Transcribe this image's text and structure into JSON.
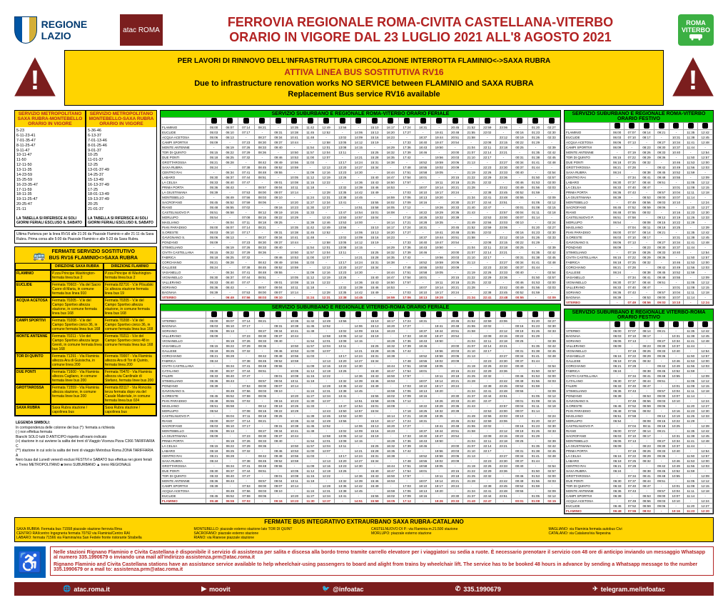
{
  "header": {
    "regione": "REGIONE LAZIO",
    "atac": "atac\nROMA",
    "title1": "FERROVIA REGIONALE ROMA-CIVITA CASTELLANA-VITERBO",
    "title2": "ORARIO IN VIGORE DAL 23 LUGLIO 2021 ALL'8 AGOSTO 2021",
    "badge_l1": "ROMA",
    "badge_l2": "VITERBO"
  },
  "banner": {
    "l1": "PER LAVORI DI RINNOVO DELL'INFRASTRUTTURA CIRCOLAZIONE INTERROTTA FLAMINIO<->SAXA RUBRA",
    "l2": "ATTIVA LINEA BUS SOSTITUTIVA RV16",
    "l3": "Due to infrastructure renovation works NO SERVICE between FLAMINIO and SAXA RUBRA",
    "l4": "Replacement Bus service RV16 available"
  },
  "metro": {
    "left_head": "SERVIZIO METROPOLITANO\nSAXA RUBRA-MONTEBELLO\nORARIO IN VIGORE",
    "right_head": "SERVIZIO METROPOLITANO\nMONTEBELLO-SAXA RUBRA\nORARIO IN VIGORE",
    "left_times": [
      "5-23",
      "6-11-23-41",
      "7-01-35-47",
      "8-11-25-47",
      "9-11-47",
      "10-11-47",
      "11-50",
      "12-11-50",
      "13-11-35",
      "14-23-59",
      "15-25-59",
      "16-23-35-47",
      "17-11-59",
      "18-11-35",
      "19-11-25-47",
      "20-25-47",
      "21-11"
    ],
    "right_times": [
      "5-36-46",
      "6-13-37",
      "7-01-13-46",
      "8-01-25-46",
      "9-01-37",
      "10-25",
      "11-01-37",
      "12-25",
      "13-01-37-49",
      "14-25-37",
      "15-13-49",
      "16-13-37-49",
      "17-25",
      "18-01-13-49",
      "19-13-37-49",
      "20-25",
      "21-01-37"
    ],
    "left_note": "LA TABELLA SI RIFERISCE AI SOLI GIORNI FERIALI ESCLUSO IL SABATO",
    "right_note": "LA TABELLA SI RIFERISCE AI SOLI GIORNI FERIALI ESCLUSO IL SABATO",
    "foot": "Ultima Partenza per la linea RV16 alle 21:26 da Piazzale Flaminio e alle 21:11 da Saxa Rubra. Prima corsa alle 5:00 da Piazzale Flaminio e alle 5:23 da Saxa Rubra."
  },
  "fermate": {
    "title1": "FERMATE SERVIZIO SOSTITUTIVO",
    "title2": "BUS RV16 FLAMINIO<>SAXA RUBRA",
    "head_dir1": "DIREZIONE SAXA RUBRA",
    "head_dir2": "DIREZIONE FLAMINIO",
    "rows": [
      [
        "FLAMINIO",
        "P.zza Principe Washington-fermata linea bus 2",
        "P.zza Principe di Washington-fermata linea bus 2"
      ],
      [
        "EUCLIDE",
        "Fermata 70603 - Via del Sacro Cuore di Maria, in comune fermata bus linea 910",
        "Fermata 82716 - V.le Pilsudski 1c altezza stazione fermata linea bus 19"
      ],
      [
        "ACQUA ACETOSA",
        "Fermata 70205 - V.le del Campo Sportivo altezza stazione, in comune fermata linea bus 168",
        "Fermata 70205 - V.le del Campo Sportivo altezza stazione, in comune fermata linea bus 168"
      ],
      [
        "CAMPI SPORTIVI",
        "Fermata 70208 - V.le del Campo Sportivo civico 36, in comune fermata linea bus 168",
        "Fermata 70208 - V.le del Campo Sportivo civico 36, in comune fermata linea bus 168"
      ],
      [
        "MONTE ANTENNE",
        "Fermata 70211 - V.le del Campo Sportivo altezza largo Grenti, in comune fermata linea bus 168",
        "Fermata 70211 - V.le del Campo Sportivo civico 48 in comune fermata linea bus 168"
      ],
      [
        "TOR DI QUINTO",
        "Fermata 71291 - Via Flaminia altezza Ara di Guisischa, in comune linea 200",
        "Fermata 70007 - Via Flaminia altezza Ara di Tor di Quinto, fermata linea 200"
      ],
      [
        "DUE PONTI",
        "Fermata 71600 - Via Flaminia altezza Cagliano, in comune fermata linee bus 200",
        "Fermata 70470 - Via Flaminia altezza via Cardinale di Stefano, fermata linee bus 200"
      ],
      [
        "GROTTAROSSA",
        "Fermata 71559 - Via Flaminia altezza stazione, in comune fermata linee bus 200",
        "Fermata 83117 - Via Roncola terza fermata dopo via del Casale Materiale, in comune fermata linea bus 024"
      ],
      [
        "SAXA RUBRA",
        "Saxa Rubra stazione / capolinea bus",
        "Saxa Rubra stazione / capolinea bus"
      ]
    ],
    "legend": [
      "LEGENDA SIMBOLI:",
      "In corrispondenza delle colonne dei bus (*): fermata a richiesta",
      "(-) non effettua fermata",
      "Bianchi SOLO tutti D ANTICIPO rispetto all'orario indicato",
      "(+) stazione in cui avviene la salita dei treni di Viaggio Vicenza Pizza C366 TARIFFARIA C",
      "(**) stazione in cui solo la salita dei treni di viaggio Metrobus Roma ZONA TARIFFARIA A",
      "Nero busa dal Lunedì venerdì esclusi FESTIVI e SABATO bus effettua nei giorni feriali",
      "● Treno METROPOLITANO ■ treno SUBURBANO ▲ treno REGIONALE"
    ]
  },
  "big_tables": {
    "rv_feriale_head": "SERVIZIO SUBURBANO E REGIONALE ROMA-VITERBO\nORARIO FERIALE",
    "vr_feriale_head": "SERVIZIO SUBURBANO E REGIONALE VITERBO-ROMA\nORARIO FERIALE",
    "rv_festivo_head": "SERVIZIO SUBURBANO E REGIONALE ROMA-VITERBO\nORARIO FESTIVO",
    "vr_festivo_head": "SERVIZIO SUBURBANO E REGIONALE VITERBO-ROMA\nORARIO FESTIVO",
    "stations_rv": [
      "FLAMINIO",
      "EUCLIDE",
      "ACQUA ACETOSA",
      "CAMPI SPORTIVI",
      "MONTE ANTENNE",
      "TOR DI QUINTO",
      "DUE PONTI",
      "GROTTAROSSA",
      "SAXA RUBRA",
      "CENTRO RAI",
      "LABARO",
      "LA CELSA",
      "PRIMA PORTA",
      "LA GIUSTINIANA",
      "MONTEBELLO",
      "SACROFANO",
      "RIANO",
      "CASTELNUOVO P.",
      "MORLUPO",
      "MAGLIANO",
      "PIAN PARADISO",
      "S.ORESTE",
      "GAVIGNANO S.",
      "PONZANO",
      "STIMIGLIANO",
      "CIVITA CASTELLANA",
      "FABRICA",
      "CORCHIANO",
      "GALLESE",
      "VASANELLO",
      "VIGNANELLO",
      "VALLERANO",
      "SORIANO",
      "BAGNAIA",
      "VITERBO"
    ],
    "stations_vr": [
      "VITERBO",
      "BAGNAIA",
      "SORIANO",
      "VALLERANO",
      "VIGNANELLO",
      "VASANELLO",
      "GALLESE",
      "CORCHIANO",
      "FABRICA",
      "CIVITA CASTELLANA",
      "CATALANO",
      "FALERI",
      "STIMIGLIANO",
      "PONZANO",
      "GAVIGNANO S.",
      "S.ORESTE",
      "PIAN PARADISO",
      "MAGLIANO",
      "MORLUPO",
      "CASTELNUOVO P.",
      "RIANO",
      "SACROFANO",
      "MONTEBELLO",
      "LA GIUSTINIANA",
      "PRIMA PORTA",
      "LA CELSA",
      "LABARO",
      "CENTRO RAI",
      "SAXA RUBRA",
      "GROTTAROSSA",
      "DUE PONTI",
      "TOR DI QUINTO",
      "MONTE ANTENNE",
      "CAMPI SPORTIVI",
      "ACQUA ACETOSA",
      "EUCLIDE",
      "FLAMINIO"
    ],
    "cols_feriale": 22,
    "cols_festivo": 7
  },
  "extra": {
    "head": "FERMATE BUS INTEGRATIVO EXTRAURBANO SAXA RUBRA-CATALANO",
    "col1": [
      "SAXA RUBRA: Fermata bus 71558 piazzale stazione ferrovia Rma",
      "CENTRO RAI/centro Ingegneria fermata 70792 via Flaminia/Centro RAI",
      "LABARO: fermata 71566 via Flaminia/via San Fedele fronte ristorante Strabella"
    ],
    "col2": [
      "MONTEBELLO: piazzale esterno stazione lato TOR DI QUINT",
      "SACROFANO: piazzale esterno stazione",
      "RIANO: via Rianese piazzale stazione"
    ],
    "col3": [
      "CASTELNUOVO DI P.: via Flaminia m.21.500 stazione",
      "MORLUPO: piazzale esterno stazione"
    ],
    "col4": [
      "MAGLIANO: via Flaminia fermata autobus Civi",
      "CATALANO: via Catalano/via Nepesina"
    ]
  },
  "wheelchair": {
    "it": "Nelle stazioni Rignano Flaminio e Civita Castellana è disponibile il servizio di assistenza per salita e discesa alla bordo treno tramite carrello elevatore per i viaggiatori su sedia a ruote. È necessario prenotare il servizio con 48 ore di anticipo inviando un messaggio Whatsapp al numero 335.1990679 o inviando una mail all'indirizzo assistenza.prm@atac.roma.it",
    "en": "Rignano Flaminio and Civita Castellana stations have an assistance service available to help wheelchair-using passengers to board and alight from trains by wheelchair lift. The service has to be booked 48 hours in advance by sending a Whatsapp message to the number 335.1990679 or a mail to: assistenza.prm@atac.roma.it"
  },
  "footer": {
    "web": "atac.roma.it",
    "moovit": "moovit",
    "twitter": "@infoatac",
    "whatsapp": "335.1990679",
    "telegram": "telegram.me/infoatac"
  },
  "colors": {
    "yellow": "#ffd400",
    "green": "#00c400",
    "maroon": "#7b1e1e",
    "red": "#b22222",
    "blue": "#005eb8"
  }
}
